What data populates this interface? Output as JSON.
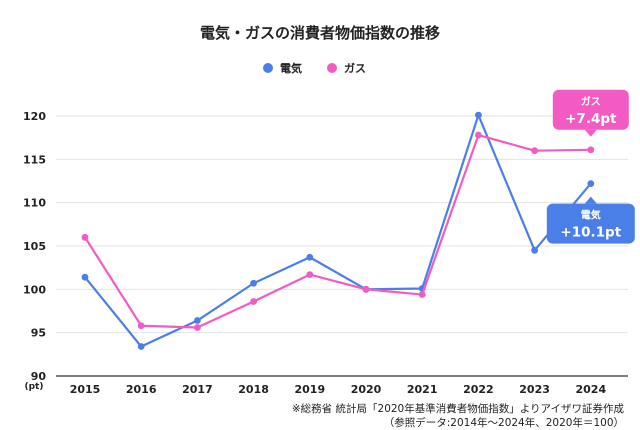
{
  "chart_data": {
    "type": "line",
    "title": "電気・ガスの消費者物価指数の推移",
    "x": [
      "2015",
      "2016",
      "2017",
      "2018",
      "2019",
      "2020",
      "2021",
      "2022",
      "2023",
      "2024"
    ],
    "ylim": [
      90,
      120
    ],
    "yticks": [
      90,
      95,
      100,
      105,
      110,
      115,
      120
    ],
    "yunit": "(pt)",
    "grid": true,
    "legend_position": "top-center",
    "series": [
      {
        "name": "電気",
        "color": "#4a7fe8",
        "values": [
          101.4,
          93.4,
          96.4,
          100.7,
          103.7,
          100.0,
          100.1,
          120.1,
          104.5,
          112.2
        ]
      },
      {
        "name": "ガス",
        "color": "#f25bc4",
        "values": [
          106.0,
          95.8,
          95.6,
          98.6,
          101.7,
          100.0,
          99.4,
          117.8,
          116.0,
          116.1
        ]
      }
    ],
    "callouts": [
      {
        "series": "ガス",
        "label": "ガス",
        "value": "+7.4pt",
        "color": "#f25bc4"
      },
      {
        "series": "電気",
        "label": "電気",
        "value": "+10.1pt",
        "color": "#4a7fe8"
      }
    ],
    "source": "※総務省 統計局「2020年基準消費者物価指数」よりアイザワ証券作成",
    "note": "（参照データ:2014年～2024年、2020年＝100）"
  }
}
